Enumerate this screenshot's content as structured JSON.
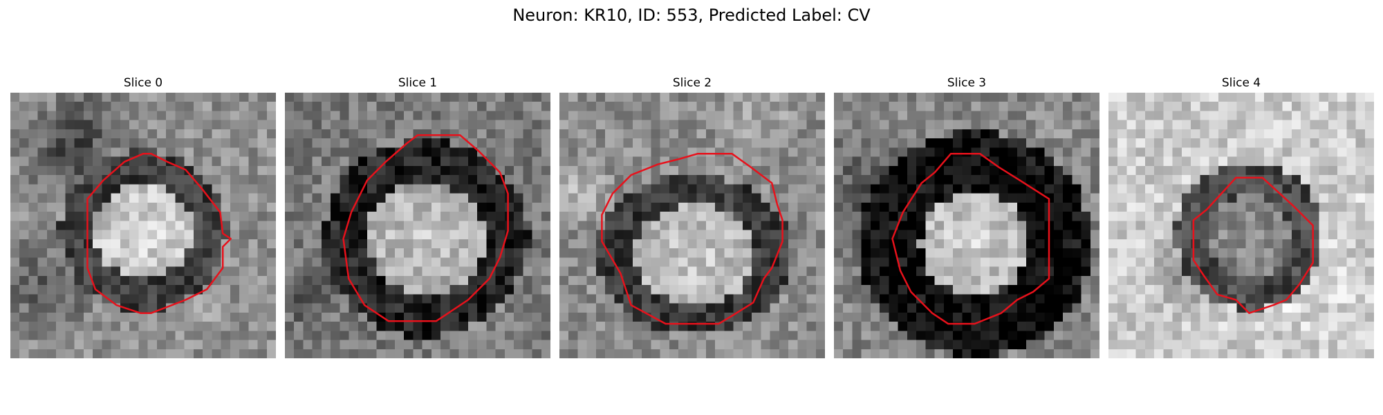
{
  "figure": {
    "title": "Neuron: KR10, ID: 553, Predicted Label: CV"
  },
  "outline_color": "#e8111b",
  "colormap": "grayscale",
  "grid_size": 29,
  "panels": [
    {
      "title": "Slice 0"
    },
    {
      "title": "Slice 1"
    },
    {
      "title": "Slice 2"
    },
    {
      "title": "Slice 3"
    },
    {
      "title": "Slice 4"
    }
  ]
}
